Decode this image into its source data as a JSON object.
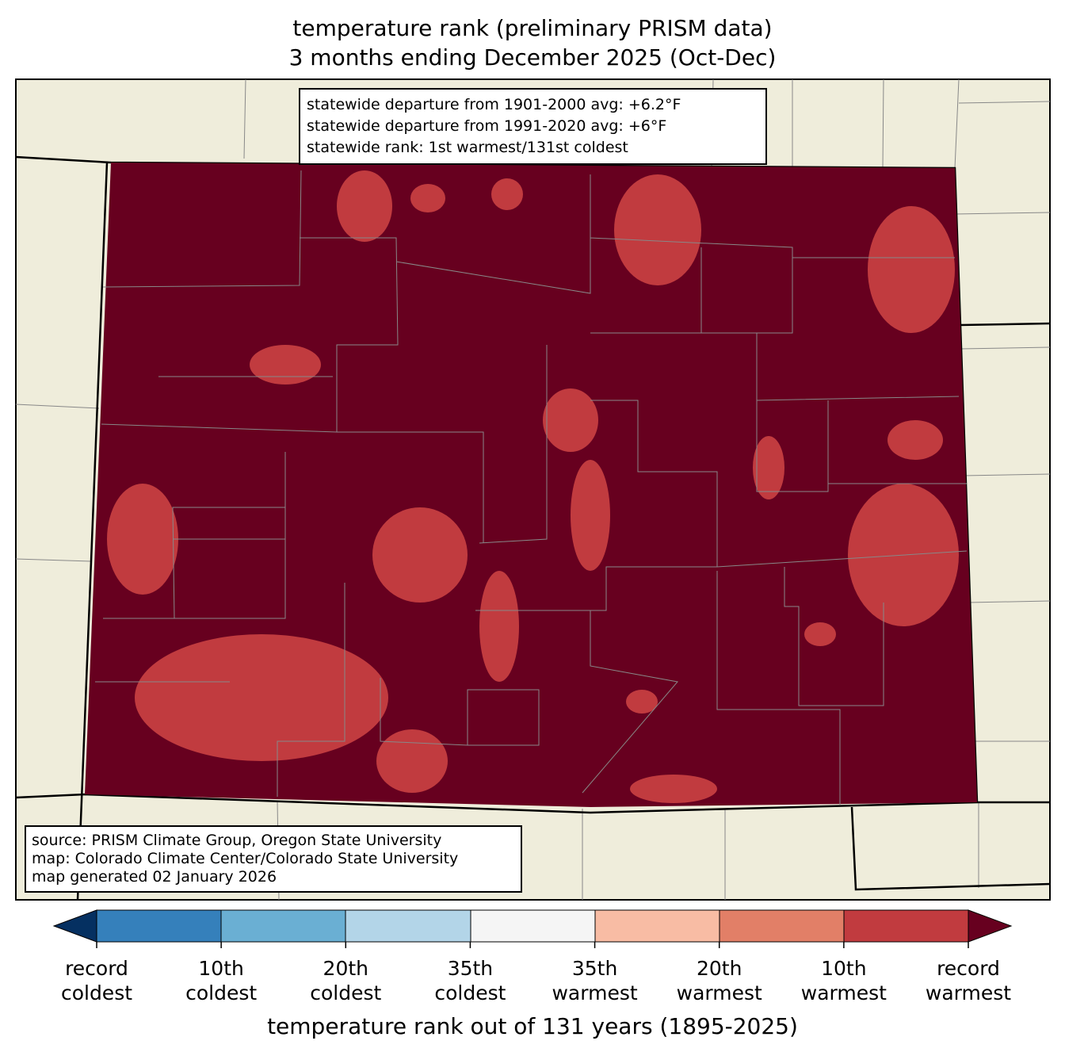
{
  "title": [
    "temperature rank (preliminary PRISM data)",
    "3 months ending December 2025 (Oct-Dec)"
  ],
  "info_box": [
    "statewide departure from 1901-2000 avg: +6.2°F",
    "statewide departure from 1991-2020 avg: +6°F",
    "statewide rank: 1st warmest/131st coldest"
  ],
  "source_box": [
    "source: PRISM Climate Group, Oregon State University",
    "map: Colorado Climate Center/Colorado State University",
    "map generated 02 January 2026"
  ],
  "colorbar": {
    "ticks": [
      [
        "record",
        "coldest"
      ],
      [
        "10th",
        "coldest"
      ],
      [
        "20th",
        "coldest"
      ],
      [
        "35th",
        "coldest"
      ],
      [
        "35th",
        "warmest"
      ],
      [
        "20th",
        "warmest"
      ],
      [
        "10th",
        "warmest"
      ],
      [
        "record",
        "warmest"
      ]
    ],
    "label": "temperature rank out of 131 years (1895-2025)"
  }
}
